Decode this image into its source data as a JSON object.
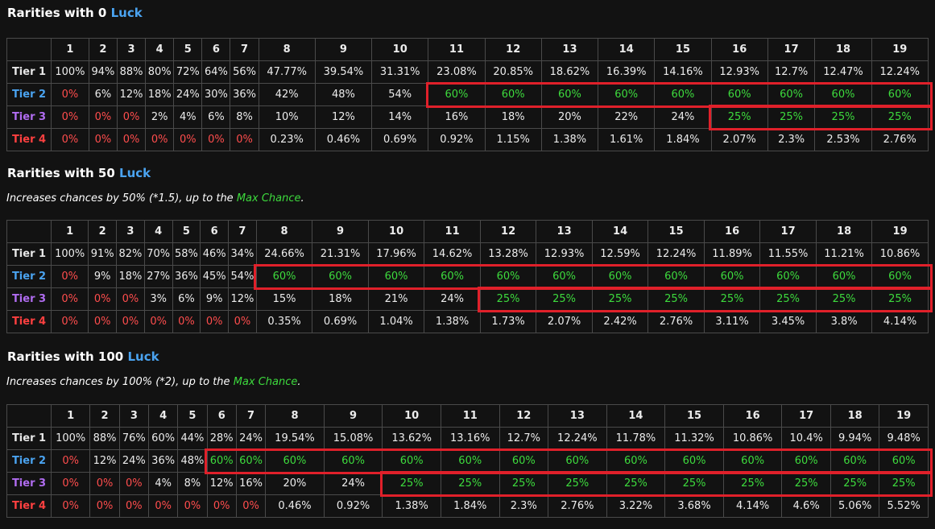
{
  "sections": [
    {
      "heading_prefix": "Rarities with 0 ",
      "heading_luck": "Luck",
      "note": "",
      "note_max": "",
      "note_end": "",
      "columns": [
        "",
        "1",
        "2",
        "3",
        "4",
        "5",
        "6",
        "7",
        "8",
        "9",
        "10",
        "11",
        "12",
        "13",
        "14",
        "15",
        "16",
        "17",
        "18",
        "19"
      ],
      "rows": [
        {
          "tier": "Tier 1",
          "cells": [
            "100%",
            "94%",
            "88%",
            "80%",
            "72%",
            "64%",
            "56%",
            "47.77%",
            "39.54%",
            "31.31%",
            "23.08%",
            "20.85%",
            "18.62%",
            "16.39%",
            "14.16%",
            "12.93%",
            "12.7%",
            "12.47%",
            "12.24%"
          ]
        },
        {
          "tier": "Tier 2",
          "cells": [
            "0%",
            "6%",
            "12%",
            "18%",
            "24%",
            "30%",
            "36%",
            "42%",
            "48%",
            "54%",
            "60%",
            "60%",
            "60%",
            "60%",
            "60%",
            "60%",
            "60%",
            "60%",
            "60%"
          ]
        },
        {
          "tier": "Tier 3",
          "cells": [
            "0%",
            "0%",
            "0%",
            "2%",
            "4%",
            "6%",
            "8%",
            "10%",
            "12%",
            "14%",
            "16%",
            "18%",
            "20%",
            "22%",
            "24%",
            "25%",
            "25%",
            "25%",
            "25%"
          ]
        },
        {
          "tier": "Tier 4",
          "cells": [
            "0%",
            "0%",
            "0%",
            "0%",
            "0%",
            "0%",
            "0%",
            "0.23%",
            "0.46%",
            "0.69%",
            "0.92%",
            "1.15%",
            "1.38%",
            "1.61%",
            "1.84%",
            "2.07%",
            "2.3%",
            "2.53%",
            "2.76%"
          ]
        }
      ],
      "max_chance": {
        "tier2_from_level": 11,
        "tier3_from_level": 16
      }
    },
    {
      "heading_prefix": "Rarities with 50 ",
      "heading_luck": "Luck",
      "note": "Increases chances by 50% (*1.5), up to the ",
      "note_max": "Max Chance",
      "note_end": ".",
      "columns": [
        "",
        "1",
        "2",
        "3",
        "4",
        "5",
        "6",
        "7",
        "8",
        "9",
        "10",
        "11",
        "12",
        "13",
        "14",
        "15",
        "16",
        "17",
        "18",
        "19"
      ],
      "rows": [
        {
          "tier": "Tier 1",
          "cells": [
            "100%",
            "91%",
            "82%",
            "70%",
            "58%",
            "46%",
            "34%",
            "24.66%",
            "21.31%",
            "17.96%",
            "14.62%",
            "13.28%",
            "12.93%",
            "12.59%",
            "12.24%",
            "11.89%",
            "11.55%",
            "11.21%",
            "10.86%"
          ]
        },
        {
          "tier": "Tier 2",
          "cells": [
            "0%",
            "9%",
            "18%",
            "27%",
            "36%",
            "45%",
            "54%",
            "60%",
            "60%",
            "60%",
            "60%",
            "60%",
            "60%",
            "60%",
            "60%",
            "60%",
            "60%",
            "60%",
            "60%"
          ]
        },
        {
          "tier": "Tier 3",
          "cells": [
            "0%",
            "0%",
            "0%",
            "3%",
            "6%",
            "9%",
            "12%",
            "15%",
            "18%",
            "21%",
            "24%",
            "25%",
            "25%",
            "25%",
            "25%",
            "25%",
            "25%",
            "25%",
            "25%"
          ]
        },
        {
          "tier": "Tier 4",
          "cells": [
            "0%",
            "0%",
            "0%",
            "0%",
            "0%",
            "0%",
            "0%",
            "0.35%",
            "0.69%",
            "1.04%",
            "1.38%",
            "1.73%",
            "2.07%",
            "2.42%",
            "2.76%",
            "3.11%",
            "3.45%",
            "3.8%",
            "4.14%"
          ]
        }
      ],
      "max_chance": {
        "tier2_from_level": 8,
        "tier3_from_level": 12
      }
    },
    {
      "heading_prefix": "Rarities with 100 ",
      "heading_luck": "Luck",
      "note": "Increases chances by 100% (*2), up to the ",
      "note_max": "Max Chance",
      "note_end": ".",
      "columns": [
        "",
        "1",
        "2",
        "3",
        "4",
        "5",
        "6",
        "7",
        "8",
        "9",
        "10",
        "11",
        "12",
        "13",
        "14",
        "15",
        "16",
        "17",
        "18",
        "19"
      ],
      "rows": [
        {
          "tier": "Tier 1",
          "cells": [
            "100%",
            "88%",
            "76%",
            "60%",
            "44%",
            "28%",
            "24%",
            "19.54%",
            "15.08%",
            "13.62%",
            "13.16%",
            "12.7%",
            "12.24%",
            "11.78%",
            "11.32%",
            "10.86%",
            "10.4%",
            "9.94%",
            "9.48%"
          ]
        },
        {
          "tier": "Tier 2",
          "cells": [
            "0%",
            "12%",
            "24%",
            "36%",
            "48%",
            "60%",
            "60%",
            "60%",
            "60%",
            "60%",
            "60%",
            "60%",
            "60%",
            "60%",
            "60%",
            "60%",
            "60%",
            "60%",
            "60%"
          ]
        },
        {
          "tier": "Tier 3",
          "cells": [
            "0%",
            "0%",
            "0%",
            "4%",
            "8%",
            "12%",
            "16%",
            "20%",
            "24%",
            "25%",
            "25%",
            "25%",
            "25%",
            "25%",
            "25%",
            "25%",
            "25%",
            "25%",
            "25%"
          ]
        },
        {
          "tier": "Tier 4",
          "cells": [
            "0%",
            "0%",
            "0%",
            "0%",
            "0%",
            "0%",
            "0%",
            "0.46%",
            "0.92%",
            "1.38%",
            "1.84%",
            "2.3%",
            "2.76%",
            "3.22%",
            "3.68%",
            "4.14%",
            "4.6%",
            "5.06%",
            "5.52%"
          ]
        }
      ],
      "max_chance": {
        "tier2_from_level": 6,
        "tier3_from_level": 10
      }
    }
  ],
  "colors": {
    "luck": "#4aa3f0",
    "tier1": "#e6e6e6",
    "tier2": "#4aa3f0",
    "tier3": "#b06cf0",
    "tier4": "#ff4040",
    "zero": "#ff4d4d",
    "max_chance": "#3ddb3d",
    "highlight_border": "#e0202a"
  }
}
